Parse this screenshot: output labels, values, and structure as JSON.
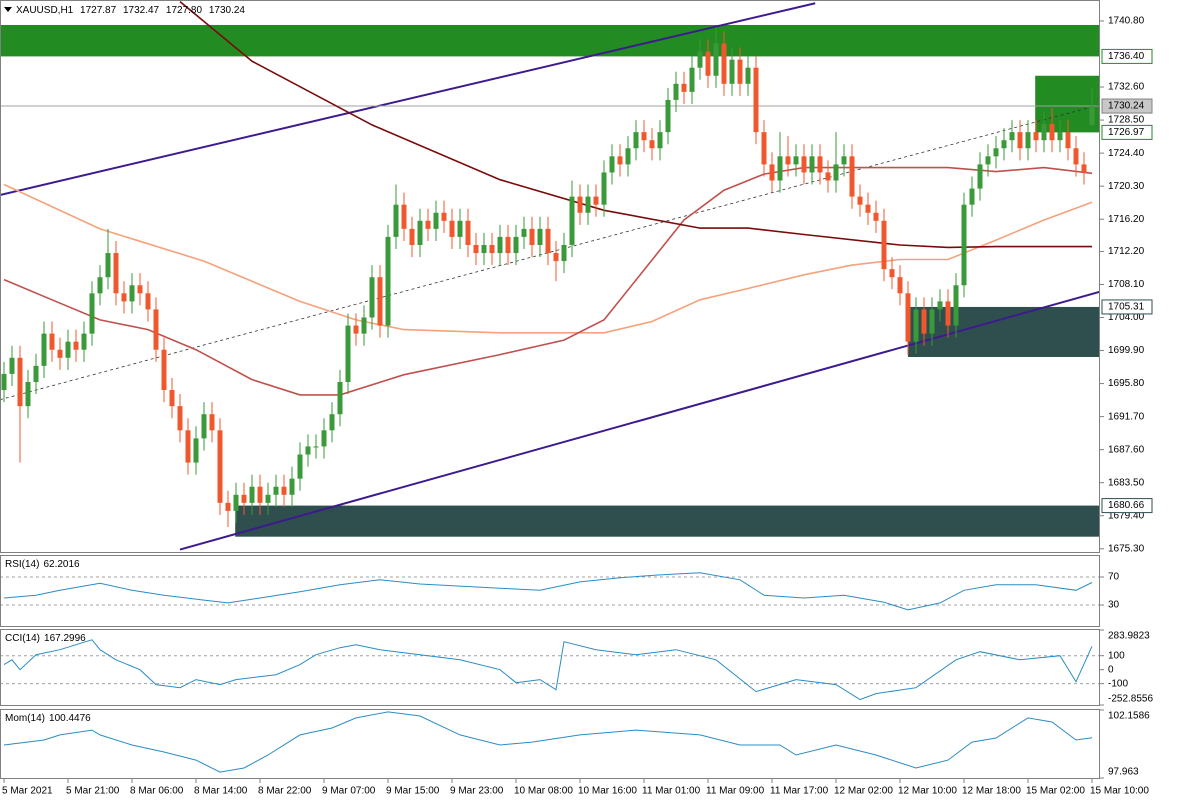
{
  "chart_data": [
    {
      "type": "candlestick",
      "symbol": "XAUUSD,H1",
      "ohlc_labels": [
        "1727.87",
        "1732.47",
        "1727.80",
        "1730.24"
      ],
      "open": [
        1695,
        1697,
        1699,
        1693,
        1696,
        1698,
        1702,
        1700,
        1699,
        1701,
        1700,
        1702,
        1707,
        1709,
        1712,
        1707,
        1706,
        1708,
        1707,
        1705,
        1700,
        1695,
        1693,
        1690,
        1686,
        1689,
        1692,
        1690,
        1681,
        1680,
        1682,
        1681,
        1683,
        1681,
        1682,
        1683,
        1682,
        1684,
        1687,
        1688,
        1688,
        1690,
        1692,
        1696,
        1703,
        1702,
        1704,
        1709,
        1703,
        1714,
        1718,
        1715,
        1713,
        1716,
        1715,
        1717,
        1716,
        1714,
        1716,
        1713,
        1712,
        1713,
        1712,
        1714,
        1712,
        1714,
        1715,
        1713,
        1715,
        1712,
        1711,
        1713,
        1719,
        1717,
        1719,
        1718,
        1722,
        1724,
        1723,
        1725,
        1727,
        1726,
        1725,
        1727,
        1731,
        1733,
        1732,
        1735,
        1737,
        1734,
        1738,
        1733,
        1736,
        1733,
        1735,
        1727,
        1723,
        1721,
        1724,
        1723,
        1724,
        1722,
        1724,
        1722,
        1721,
        1723,
        1724,
        1719,
        1718,
        1717,
        1716,
        1710,
        1709,
        1707,
        1701,
        1705,
        1702,
        1705,
        1706,
        1703,
        1708,
        1718,
        1720,
        1723,
        1724,
        1725,
        1726,
        1727,
        1725,
        1727,
        1726,
        1728,
        1726,
        1727,
        1725,
        1723,
        1727.87
      ],
      "high": [
        1698.5,
        1700.5,
        1700.5,
        1697.5,
        1699.5,
        1703.5,
        1703.5,
        1701.5,
        1702.5,
        1702.5,
        1703.5,
        1708.5,
        1710.5,
        1715,
        1713.5,
        1708.5,
        1709.5,
        1709.5,
        1708.5,
        1706.5,
        1701.5,
        1696.5,
        1694.5,
        1691.5,
        1690.5,
        1693.5,
        1693.5,
        1691.5,
        1682.5,
        1683.5,
        1683.5,
        1684.5,
        1684.5,
        1683.5,
        1684.5,
        1684.5,
        1685.5,
        1688.5,
        1689.5,
        1689.5,
        1691.5,
        1693.5,
        1697.5,
        1704.5,
        1704.5,
        1705.5,
        1710.5,
        1710.5,
        1715.5,
        1720.5,
        1719.5,
        1716.5,
        1717.5,
        1717.5,
        1718.5,
        1718.5,
        1717.5,
        1717.5,
        1717.5,
        1714.5,
        1714.5,
        1714.5,
        1715.5,
        1715.5,
        1715.5,
        1716.5,
        1716.5,
        1716.5,
        1716.5,
        1713.5,
        1714.5,
        1721,
        1720.5,
        1720.5,
        1720.5,
        1723.5,
        1725.5,
        1725.5,
        1726.5,
        1728.5,
        1728.5,
        1727.5,
        1728.5,
        1732.5,
        1734.5,
        1734.5,
        1736.5,
        1738.5,
        1738.5,
        1740,
        1739.5,
        1737.5,
        1737.5,
        1736.5,
        1736.5,
        1728.5,
        1724.5,
        1727,
        1726.5,
        1725.5,
        1725.5,
        1725.5,
        1725.5,
        1723.5,
        1727,
        1725.5,
        1725.5,
        1720.5,
        1719.5,
        1718.5,
        1717.5,
        1711.5,
        1710.5,
        1708.5,
        1706.5,
        1706.5,
        1706.5,
        1707.5,
        1707.5,
        1709.5,
        1719.5,
        1721.5,
        1724.5,
        1725.5,
        1726.5,
        1727.5,
        1728.5,
        1728.5,
        1728.5,
        1728.5,
        1729.5,
        1730,
        1728.5,
        1728.5,
        1726.5,
        1724.5,
        1732.47
      ],
      "low": [
        1693.5,
        1695.5,
        1686,
        1691.5,
        1694.5,
        1696.5,
        1698.5,
        1697.5,
        1697.5,
        1698.5,
        1698.5,
        1700.5,
        1705.5,
        1707.5,
        1705.5,
        1704.5,
        1704.5,
        1705.5,
        1703.5,
        1698.5,
        1693.5,
        1691.5,
        1688.5,
        1684.5,
        1684.5,
        1687.5,
        1688.5,
        1679.5,
        1678,
        1678.5,
        1679.5,
        1679.5,
        1679.5,
        1679.5,
        1680.5,
        1680.5,
        1680.5,
        1682.5,
        1685.5,
        1686.5,
        1686.5,
        1688.5,
        1690.5,
        1694.5,
        1700.5,
        1700.5,
        1702.5,
        1701.5,
        1701.5,
        1712.5,
        1713.5,
        1711.5,
        1711.5,
        1713.5,
        1713.5,
        1714.5,
        1712.5,
        1712.5,
        1711.5,
        1710.5,
        1710.5,
        1710.5,
        1710.5,
        1710.5,
        1710.5,
        1712.5,
        1711.5,
        1711.5,
        1710.5,
        1708.5,
        1709.5,
        1711.5,
        1715.5,
        1715.5,
        1716.5,
        1716.5,
        1720.5,
        1721.5,
        1721.5,
        1723.5,
        1724.5,
        1723.5,
        1723.5,
        1725.5,
        1729.5,
        1730.5,
        1730.5,
        1733.5,
        1732.5,
        1732.5,
        1731.5,
        1731.5,
        1731.5,
        1731.5,
        1725.5,
        1721.5,
        1719.5,
        1719.5,
        1721.5,
        1721.5,
        1720.5,
        1720.5,
        1720.5,
        1719.5,
        1719.5,
        1721.5,
        1717.5,
        1716.5,
        1715.5,
        1714.5,
        1708.5,
        1707.5,
        1705.5,
        1699.3,
        1699.5,
        1700.5,
        1700.5,
        1703.5,
        1701.5,
        1701.5,
        1706.5,
        1716.5,
        1718.5,
        1721.5,
        1722.5,
        1723.5,
        1724.5,
        1723.5,
        1723.5,
        1724.5,
        1724.5,
        1724.5,
        1724.5,
        1723.5,
        1721.5,
        1720.5,
        1727.8
      ],
      "close": [
        1697,
        1699,
        1693,
        1696,
        1698,
        1702,
        1700,
        1699,
        1701,
        1700,
        1702,
        1707,
        1709,
        1712,
        1707,
        1706,
        1708,
        1707,
        1705,
        1700,
        1695,
        1693,
        1690,
        1686,
        1689,
        1692,
        1690,
        1681,
        1680,
        1682,
        1681,
        1683,
        1681,
        1682,
        1683,
        1682,
        1684,
        1687,
        1688,
        1688,
        1690,
        1692,
        1696,
        1703,
        1702,
        1704,
        1709,
        1703,
        1714,
        1718,
        1715,
        1713,
        1716,
        1715,
        1717,
        1716,
        1714,
        1716,
        1713,
        1712,
        1713,
        1712,
        1714,
        1712,
        1714,
        1715,
        1713,
        1715,
        1712,
        1711,
        1713,
        1719,
        1717,
        1719,
        1718,
        1722,
        1724,
        1723,
        1725,
        1727,
        1726,
        1725,
        1727,
        1731,
        1733,
        1732,
        1735,
        1737,
        1734,
        1738,
        1733,
        1736,
        1733,
        1735,
        1727,
        1723,
        1721,
        1724,
        1723,
        1724,
        1722,
        1724,
        1722,
        1721,
        1723,
        1724,
        1719,
        1718,
        1717,
        1716,
        1710,
        1709,
        1707,
        1701,
        1705,
        1702,
        1705,
        1706,
        1703,
        1708,
        1718,
        1720,
        1723,
        1724,
        1725,
        1726,
        1727,
        1725,
        1727,
        1726,
        1728,
        1726,
        1727,
        1725,
        1723,
        1722,
        1730.24
      ],
      "colors": {
        "up": "#3a9a3a",
        "down": "#f0572d"
      },
      "xlim": [
        -0.5,
        137
      ],
      "xticks": [
        {
          "value": 0,
          "label": "5 Mar 2021"
        },
        {
          "value": 8,
          "label": "5 Mar 21:00"
        },
        {
          "value": 16,
          "label": "8 Mar 06:00"
        },
        {
          "value": 24,
          "label": "8 Mar 14:00"
        },
        {
          "value": 32,
          "label": "8 Mar 22:00"
        },
        {
          "value": 40,
          "label": "9 Mar 07:00"
        },
        {
          "value": 48,
          "label": "9 Mar 15:00"
        },
        {
          "value": 56,
          "label": "9 Mar 23:00"
        },
        {
          "value": 64,
          "label": "10 Mar 08:00"
        },
        {
          "value": 72,
          "label": "10 Mar 16:00"
        },
        {
          "value": 80,
          "label": "11 Mar 01:00"
        },
        {
          "value": 88,
          "label": "11 Mar 09:00"
        },
        {
          "value": 96,
          "label": "11 Mar 17:00"
        },
        {
          "value": 104,
          "label": "12 Mar 02:00"
        },
        {
          "value": 112,
          "label": "12 Mar 10:00"
        },
        {
          "value": 120,
          "label": "12 Mar 18:00"
        },
        {
          "value": 128,
          "label": "15 Mar 02:00"
        },
        {
          "value": 136,
          "label": "15 Mar 10:00"
        }
      ],
      "ylim": [
        1674.9,
        1743.4
      ],
      "yticks": [
        {
          "value": 1740.8,
          "label": "1740.80"
        },
        {
          "value": 1732.6,
          "label": "1732.60"
        },
        {
          "value": 1728.5,
          "label": "1728.50"
        },
        {
          "value": 1724.4,
          "label": "1724.40"
        },
        {
          "value": 1720.3,
          "label": "1720.30"
        },
        {
          "value": 1716.2,
          "label": "1716.20"
        },
        {
          "value": 1712.2,
          "label": "1712.20"
        },
        {
          "value": 1708.1,
          "label": "1708.10"
        },
        {
          "value": 1704,
          "label": "1704.00"
        },
        {
          "value": 1699.9,
          "label": "1699.90"
        },
        {
          "value": 1695.8,
          "label": "1695.80"
        },
        {
          "value": 1691.7,
          "label": "1691.70"
        },
        {
          "value": 1687.6,
          "label": "1687.60"
        },
        {
          "value": 1683.5,
          "label": "1683.50"
        },
        {
          "value": 1679.4,
          "label": "1679.40"
        },
        {
          "value": 1675.3,
          "label": "1675.30"
        }
      ],
      "zones": [
        {
          "x": [
            -0.5,
            137
          ],
          "low": 1736.4,
          "high": 1740.3,
          "label": "1736.40",
          "color": "#228b22"
        },
        {
          "x": [
            128.9,
            137
          ],
          "low": 1726.97,
          "high": 1734,
          "label": "1726.97",
          "color": "#228b22"
        },
        {
          "x": [
            113,
            137
          ],
          "low": 1699.1,
          "high": 1705.31,
          "label": "1705.31",
          "color": "#2f4f4f"
        },
        {
          "x": [
            28.9,
            137
          ],
          "low": 1676.8,
          "high": 1680.66,
          "label": "1680.66",
          "color": "#2f4f4f"
        }
      ],
      "lines": [
        {
          "color": "#f5a27a",
          "x": [
            0,
            12,
            25,
            37,
            44,
            50,
            62,
            75,
            81,
            87,
            93,
            100,
            106,
            112,
            118,
            124,
            130,
            136
          ],
          "values": [
            1720.5,
            1715,
            1711,
            1706,
            1703.7,
            1702.5,
            1702.1,
            1702.1,
            1703.5,
            1706.2,
            1707.6,
            1709.3,
            1710.5,
            1711.2,
            1711.2,
            1713.6,
            1716.1,
            1718.3
          ]
        },
        {
          "color": "#c0504d",
          "x": [
            0,
            6,
            12,
            18,
            24,
            31,
            37,
            42,
            50,
            62,
            70,
            75,
            80,
            85,
            90,
            95,
            100,
            106,
            112,
            118,
            124,
            130,
            136
          ],
          "values": [
            1708.7,
            1706.2,
            1703.7,
            1702.5,
            1700,
            1696.3,
            1694.4,
            1694.4,
            1696.9,
            1699.4,
            1701.2,
            1703.7,
            1709.9,
            1716.1,
            1719.8,
            1721.8,
            1722.6,
            1722.6,
            1722.6,
            1722.6,
            1722.1,
            1722.6,
            1721.9
          ]
        },
        {
          "color": "#7a0a0a",
          "x": [
            22,
            31,
            46,
            62,
            75,
            87,
            93,
            100,
            112,
            118,
            124,
            136
          ],
          "values": [
            1743.2,
            1735.8,
            1727.9,
            1721.1,
            1717.3,
            1715.1,
            1715.1,
            1714.3,
            1713,
            1712.7,
            1712.8,
            1712.8
          ]
        }
      ],
      "trendlines": [
        {
          "x": [
            -0.5,
            101.4
          ],
          "values": [
            1719.2,
            1743
          ],
          "color": "#3d1a8e",
          "dashed": false
        },
        {
          "x": [
            22,
            137
          ],
          "values": [
            1675.2,
            1707.2
          ],
          "color": "#3d1a8e",
          "dashed": false
        },
        {
          "x": [
            -0.5,
            137
          ],
          "values": [
            1693.8,
            1730.4
          ],
          "color": "#333333",
          "dashed": true
        }
      ]
    },
    {
      "type": "line",
      "title": "RSI(14)",
      "color": "#2b8cc4",
      "xlim": [
        -0.5,
        137
      ],
      "x": [
        0,
        4,
        7,
        12,
        16,
        20,
        25,
        28,
        32,
        37,
        42,
        47,
        52,
        57,
        62,
        67,
        72,
        77,
        82,
        87,
        92,
        95,
        100,
        105,
        110,
        113,
        117,
        120,
        124,
        129,
        134,
        136
      ],
      "values": [
        40,
        44,
        51,
        61,
        51,
        44,
        37,
        33,
        40,
        49,
        59,
        66,
        60,
        57,
        54,
        51,
        63,
        69,
        73,
        76,
        66,
        44,
        40,
        44,
        34,
        23,
        33,
        51,
        59,
        59,
        51,
        62.2016
      ],
      "ylim": [
        0,
        100
      ],
      "yticks": [
        70,
        30
      ],
      "levels": [
        70,
        30
      ]
    },
    {
      "type": "line",
      "title": "CCI(14)",
      "color": "#2b8cc4",
      "xlim": [
        -0.5,
        137
      ],
      "x": [
        0,
        1,
        2,
        4,
        7,
        9,
        11,
        12,
        14,
        17,
        19,
        22,
        24,
        27,
        29,
        34,
        37,
        39,
        42,
        44,
        47,
        52,
        57,
        62,
        64,
        67,
        69,
        70,
        74,
        79,
        84,
        89,
        94,
        99,
        104,
        107,
        109,
        114,
        119,
        122,
        127,
        132,
        134,
        136
      ],
      "values": [
        36,
        71,
        0,
        107,
        143,
        179,
        214,
        143,
        71,
        0,
        -107,
        -129,
        -71,
        -107,
        -71,
        -36,
        36,
        107,
        157,
        179,
        143,
        107,
        71,
        0,
        -93,
        -71,
        -143,
        200,
        143,
        107,
        143,
        71,
        -157,
        -71,
        -107,
        -214,
        -171,
        -129,
        71,
        129,
        71,
        100,
        -86,
        167.2996
      ],
      "ylim": [
        -252.8556,
        283.9823
      ],
      "yticks": [
        283.9823,
        100,
        0,
        -100,
        -252.8556
      ],
      "levels": [
        100,
        -100
      ]
    },
    {
      "type": "line",
      "title": "Mom(14)",
      "color": "#2b8cc4",
      "xlim": [
        -0.5,
        137
      ],
      "x": [
        0,
        5,
        7,
        11,
        12,
        16,
        20,
        24,
        27,
        30,
        33,
        37,
        41,
        44,
        48,
        52,
        57,
        62,
        66,
        72,
        79,
        87,
        92,
        97,
        99,
        104,
        109,
        114,
        118,
        121,
        124,
        128,
        131,
        134,
        136
      ],
      "values": [
        100,
        100.31,
        100.62,
        100.92,
        100.62,
        100,
        99.57,
        99.07,
        98.33,
        98.58,
        99.38,
        100.62,
        101.05,
        101.67,
        102.04,
        101.79,
        100.62,
        100,
        100.18,
        100.62,
        100.92,
        100.62,
        100,
        100,
        99.38,
        100,
        99.38,
        98.58,
        99.07,
        100.18,
        100.43,
        101.67,
        101.42,
        100.31,
        100.4476
      ],
      "ylim": [
        97.963,
        102.1586
      ],
      "yticks": [
        102.1586,
        97.963
      ],
      "levels": []
    }
  ]
}
